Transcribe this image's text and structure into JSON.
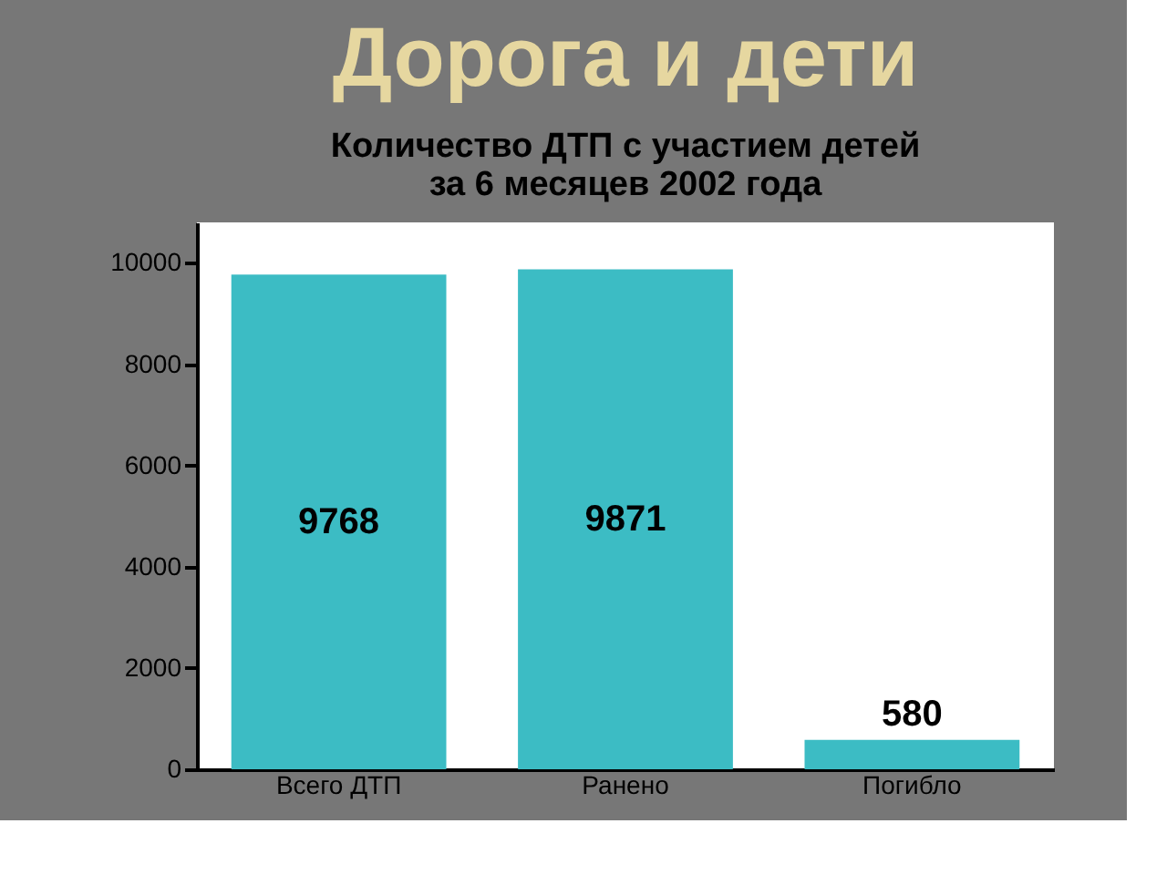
{
  "chart_data": {
    "type": "bar",
    "title": "Дорога и дети",
    "subtitle": "Количество ДТП с участием детей\nза 6 месяцев 2002 года",
    "categories": [
      "Всего ДТП",
      "Ранено",
      "Погибло"
    ],
    "values": [
      9768,
      9871,
      580
    ],
    "color": "#3cbcc4",
    "ylim": [
      0,
      10800
    ],
    "yticks": [
      0,
      2000,
      4000,
      6000,
      8000,
      10000
    ],
    "grid": false,
    "data_labels": true
  }
}
